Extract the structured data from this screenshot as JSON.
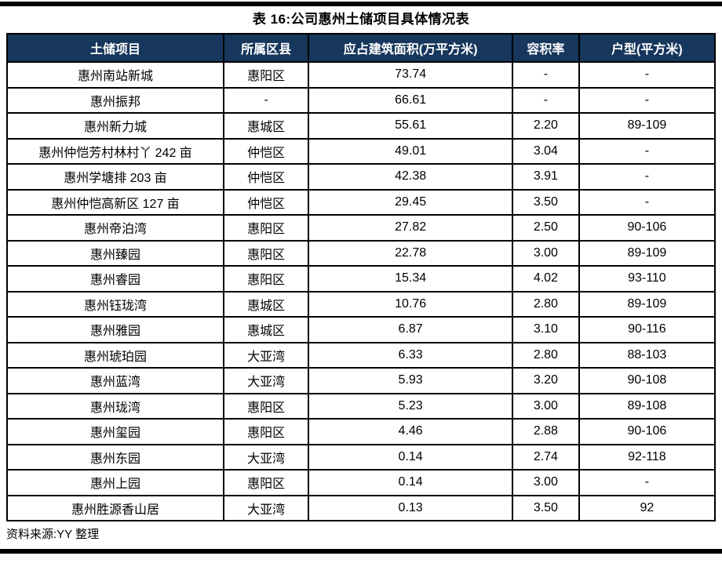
{
  "page": {
    "title": "表 16:公司惠州土储项目具体情况表",
    "source_note": "资料来源:YY 整理"
  },
  "colors": {
    "header_bg": "#17375D",
    "header_text": "#FFFFFF",
    "border": "#000000",
    "rule": "#000000",
    "body_text": "#000000"
  },
  "table": {
    "headers": [
      "土储项目",
      "所属区县",
      "应占建筑面积(万平方米)",
      "容积率",
      "户型(平方米)"
    ],
    "rows": [
      [
        "惠州南站新城",
        "惠阳区",
        "73.74",
        "-",
        "-"
      ],
      [
        "惠州振邦",
        "-",
        "66.61",
        "-",
        "-"
      ],
      [
        "惠州新力城",
        "惠城区",
        "55.61",
        "2.20",
        "89-109"
      ],
      [
        "惠州仲恺芳村林村丫 242 亩",
        "仲恺区",
        "49.01",
        "3.04",
        "-"
      ],
      [
        "惠州学塘排 203 亩",
        "仲恺区",
        "42.38",
        "3.91",
        "-"
      ],
      [
        "惠州仲恺高新区 127 亩",
        "仲恺区",
        "29.45",
        "3.50",
        "-"
      ],
      [
        "惠州帝泊湾",
        "惠阳区",
        "27.82",
        "2.50",
        "90-106"
      ],
      [
        "惠州臻园",
        "惠阳区",
        "22.78",
        "3.00",
        "89-109"
      ],
      [
        "惠州睿园",
        "惠阳区",
        "15.34",
        "4.02",
        "93-110"
      ],
      [
        "惠州钰珑湾",
        "惠城区",
        "10.76",
        "2.80",
        "89-109"
      ],
      [
        "惠州雅园",
        "惠城区",
        "6.87",
        "3.10",
        "90-116"
      ],
      [
        "惠州琥珀园",
        "大亚湾",
        "6.33",
        "2.80",
        "88-103"
      ],
      [
        "惠州蓝湾",
        "大亚湾",
        "5.93",
        "3.20",
        "90-108"
      ],
      [
        "惠州珑湾",
        "惠阳区",
        "5.23",
        "3.00",
        "89-108"
      ],
      [
        "惠州玺园",
        "惠阳区",
        "4.46",
        "2.88",
        "90-106"
      ],
      [
        "惠州东园",
        "大亚湾",
        "0.14",
        "2.74",
        "92-118"
      ],
      [
        "惠州上园",
        "惠阳区",
        "0.14",
        "3.00",
        "-"
      ],
      [
        "惠州胜源香山居",
        "大亚湾",
        "0.13",
        "3.50",
        "92"
      ]
    ]
  },
  "chart_data": {
    "type": "table",
    "columns": [
      "土储项目",
      "所属区县",
      "应占建筑面积(万平方米)",
      "容积率",
      "户型(平方米)"
    ],
    "rows": [
      [
        "惠州南站新城",
        "惠阳区",
        "73.74",
        "-",
        "-"
      ],
      [
        "惠州振邦",
        "-",
        "66.61",
        "-",
        "-"
      ],
      [
        "惠州新力城",
        "惠城区",
        "55.61",
        "2.20",
        "89-109"
      ],
      [
        "惠州仲恺芳村林村丫 242 亩",
        "仲恺区",
        "49.01",
        "3.04",
        "-"
      ],
      [
        "惠州学塘排 203 亩",
        "仲恺区",
        "42.38",
        "3.91",
        "-"
      ],
      [
        "惠州仲恺高新区 127 亩",
        "仲恺区",
        "29.45",
        "3.50",
        "-"
      ],
      [
        "惠州帝泊湾",
        "惠阳区",
        "27.82",
        "2.50",
        "90-106"
      ],
      [
        "惠州臻园",
        "惠阳区",
        "22.78",
        "3.00",
        "89-109"
      ],
      [
        "惠州睿园",
        "惠阳区",
        "15.34",
        "4.02",
        "93-110"
      ],
      [
        "惠州钰珑湾",
        "惠城区",
        "10.76",
        "2.80",
        "89-109"
      ],
      [
        "惠州雅园",
        "惠城区",
        "6.87",
        "3.10",
        "90-116"
      ],
      [
        "惠州琥珀园",
        "大亚湾",
        "6.33",
        "2.80",
        "88-103"
      ],
      [
        "惠州蓝湾",
        "大亚湾",
        "5.93",
        "3.20",
        "90-108"
      ],
      [
        "惠州珑湾",
        "惠阳区",
        "5.23",
        "3.00",
        "89-108"
      ],
      [
        "惠州玺园",
        "惠阳区",
        "4.46",
        "2.88",
        "90-106"
      ],
      [
        "惠州东园",
        "大亚湾",
        "0.14",
        "2.74",
        "92-118"
      ],
      [
        "惠州上园",
        "惠阳区",
        "0.14",
        "3.00",
        "-"
      ],
      [
        "惠州胜源香山居",
        "大亚湾",
        "0.13",
        "3.50",
        "92"
      ]
    ],
    "title": "表 16:公司惠州土储项目具体情况表"
  }
}
